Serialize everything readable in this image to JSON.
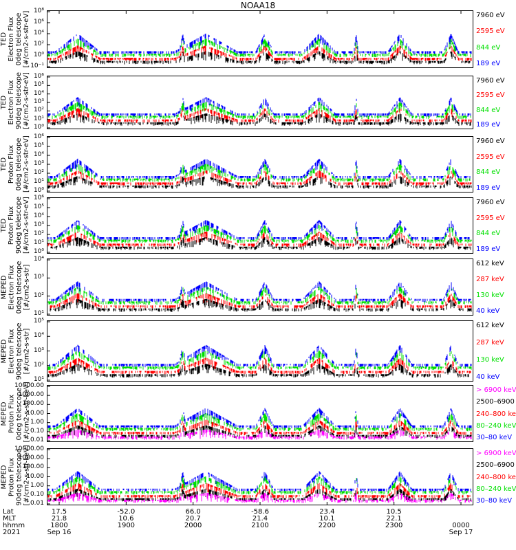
{
  "title": "NOAA18",
  "colors": {
    "blue": "#0000ff",
    "red": "#ff0000",
    "green": "#00e000",
    "black": "#000000",
    "magenta": "#ff00ff"
  },
  "chart_data": [
    {
      "type": "scatter",
      "ylabel_lines": [
        "TED",
        "Electron Flux",
        "0deg telescope",
        "[#/cm2-s-str-eV]"
      ],
      "y_scale": "log",
      "yticks": [
        "10⁻¹",
        "10⁰",
        "10²",
        "10⁴",
        "10⁶",
        "10⁸"
      ],
      "series": [
        {
          "name": "7960 eV",
          "color": "#000000"
        },
        {
          "name": "2595 eV",
          "color": "#ff0000"
        },
        {
          "name": "844 eV",
          "color": "#00e000"
        },
        {
          "name": "189 eV",
          "color": "#0000ff"
        }
      ]
    },
    {
      "type": "scatter",
      "ylabel_lines": [
        "TED",
        "Electron Flux",
        "90deg telescope",
        "[#/cm2-s-str-eV]"
      ],
      "y_scale": "log",
      "yticks": [
        "10⁰",
        "10¹",
        "10²",
        "10³",
        "10⁴",
        "10⁵",
        "10⁶"
      ],
      "series": [
        {
          "name": "7960 eV",
          "color": "#000000"
        },
        {
          "name": "2595 eV",
          "color": "#ff0000"
        },
        {
          "name": "844 eV",
          "color": "#00e000"
        },
        {
          "name": "189 eV",
          "color": "#0000ff"
        }
      ]
    },
    {
      "type": "scatter",
      "ylabel_lines": [
        "TED",
        "Proton Flux",
        "0deg telescope",
        "[#/cm2-s-str-eV]"
      ],
      "y_scale": "log",
      "yticks": [
        "10⁰",
        "10¹",
        "10²",
        "10³",
        "10⁴",
        "10⁵",
        "10⁶"
      ],
      "series": [
        {
          "name": "7960 eV",
          "color": "#000000"
        },
        {
          "name": "2595 eV",
          "color": "#ff0000"
        },
        {
          "name": "844 eV",
          "color": "#00e000"
        },
        {
          "name": "189 eV",
          "color": "#0000ff"
        }
      ]
    },
    {
      "type": "scatter",
      "ylabel_lines": [
        "TED",
        "Proton Flux",
        "90deg telescope",
        "[#/cm2-s-str-eV]"
      ],
      "y_scale": "log",
      "yticks": [
        "10⁰",
        "10¹",
        "10²",
        "10³",
        "10⁴",
        "10⁵",
        "10⁶"
      ],
      "series": [
        {
          "name": "7960 eV",
          "color": "#000000"
        },
        {
          "name": "2595 eV",
          "color": "#ff0000"
        },
        {
          "name": "844 eV",
          "color": "#00e000"
        },
        {
          "name": "189 eV",
          "color": "#0000ff"
        }
      ]
    },
    {
      "type": "scatter",
      "ylabel_lines": [
        "MEPED",
        "Electron Flux",
        "0deg telescope",
        "[#/cm2-s-str]"
      ],
      "y_scale": "log",
      "yticks": [
        "10¹",
        "10²",
        "10³",
        "10⁴"
      ],
      "series": [
        {
          "name": "612 keV",
          "color": "#000000"
        },
        {
          "name": "287 keV",
          "color": "#ff0000"
        },
        {
          "name": "130 keV",
          "color": "#00e000"
        },
        {
          "name": "40 keV",
          "color": "#0000ff"
        }
      ]
    },
    {
      "type": "scatter",
      "ylabel_lines": [
        "MEPED",
        "Electron Flux",
        "90deg telescope",
        "[#/cm2-s-str]"
      ],
      "y_scale": "log",
      "yticks": [
        "10¹",
        "10²",
        "10³",
        "10⁴",
        "10⁵"
      ],
      "series": [
        {
          "name": "612 keV",
          "color": "#000000"
        },
        {
          "name": "287 keV",
          "color": "#ff0000"
        },
        {
          "name": "130 keV",
          "color": "#00e000"
        },
        {
          "name": "40 keV",
          "color": "#0000ff"
        }
      ]
    },
    {
      "type": "scatter",
      "ylabel_lines": [
        "MEPED",
        "Proton Flux",
        "0deg telescope",
        "[#/cm2-s-str-keV]"
      ],
      "y_scale": "log",
      "yticks": [
        "0.01",
        "0.10",
        "1.00",
        "10.00",
        "100.00",
        "1000.00",
        "10000.00"
      ],
      "series": [
        {
          "name": "> 6900 keV",
          "color": "#ff00ff"
        },
        {
          "name": "2500–6900",
          "color": "#000000"
        },
        {
          "name": "240–800 keV",
          "color": "#ff0000"
        },
        {
          "name": "80–240 keV",
          "color": "#00e000"
        },
        {
          "name": "30–80 keV",
          "color": "#0000ff"
        }
      ]
    },
    {
      "type": "scatter",
      "ylabel_lines": [
        "MEPED",
        "Proton Flux",
        "90deg telescope",
        "[#/cm2-s-str-keV]"
      ],
      "y_scale": "log",
      "yticks": [
        "0.01",
        "0.10",
        "1.00",
        "10.00",
        "100.00",
        "1000.00",
        "10000.00"
      ],
      "series": [
        {
          "name": "> 6900 keV",
          "color": "#ff00ff"
        },
        {
          "name": "2500–6900",
          "color": "#000000"
        },
        {
          "name": "240–800 keV",
          "color": "#ff0000"
        },
        {
          "name": "80–240 keV",
          "color": "#00e000"
        },
        {
          "name": "30–80 keV",
          "color": "#0000ff"
        }
      ]
    }
  ],
  "xaxis": {
    "row_labels": [
      "Lat",
      "MLT",
      "hhmm",
      "2021"
    ],
    "columns": [
      {
        "lat": "17.5",
        "mlt": "21.8",
        "hhmm": "1800",
        "date": "Sep 16"
      },
      {
        "lat": "-52.0",
        "mlt": "10.6",
        "hhmm": "1900",
        "date": ""
      },
      {
        "lat": "66.0",
        "mlt": "20.7",
        "hhmm": "2000",
        "date": ""
      },
      {
        "lat": "-58.6",
        "mlt": "21.4",
        "hhmm": "2100",
        "date": ""
      },
      {
        "lat": "23.4",
        "mlt": "10.1",
        "hhmm": "2200",
        "date": ""
      },
      {
        "lat": "10.5",
        "mlt": "22.1",
        "hhmm": "2300",
        "date": ""
      },
      {
        "lat": "",
        "mlt": "",
        "hhmm": "0000",
        "date": "Sep 17"
      }
    ]
  }
}
